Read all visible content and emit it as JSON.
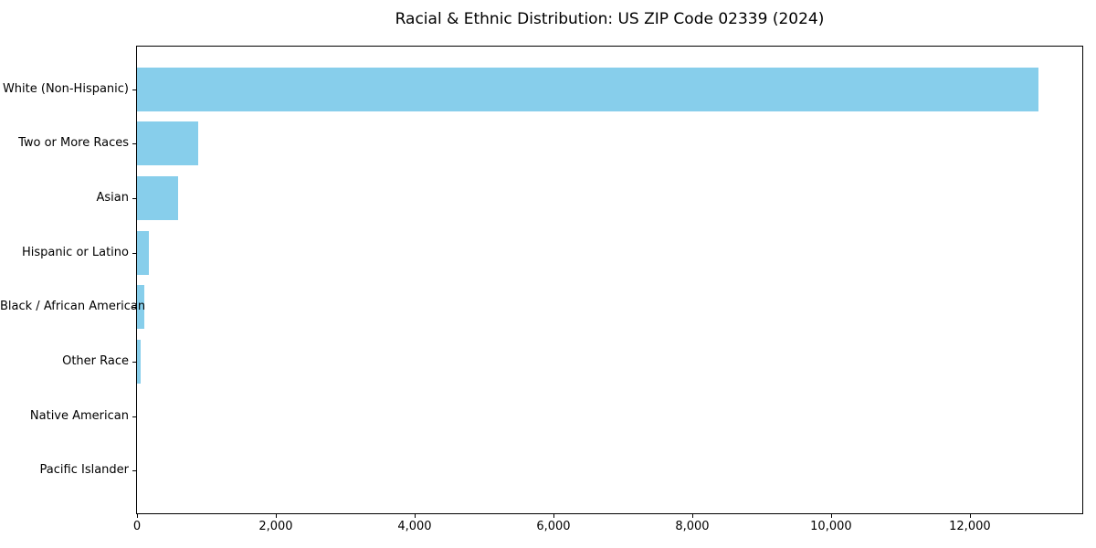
{
  "chart_data": {
    "type": "bar",
    "orientation": "horizontal",
    "title": "Racial & Ethnic Distribution: US ZIP Code 02339 (2024)",
    "categories": [
      "White (Non-Hispanic)",
      "Two or More Races",
      "Asian",
      "Hispanic or Latino",
      "Black / African American",
      "Other Race",
      "Native American",
      "Pacific Islander"
    ],
    "values": [
      12990,
      880,
      590,
      175,
      100,
      50,
      0,
      0
    ],
    "bar_color": "#87CEEB",
    "frame_color": "#000000",
    "text_color": "#000000",
    "xlabel": "",
    "ylabel": "",
    "xlim": [
      0,
      13620
    ],
    "x_ticks": [
      0,
      2000,
      4000,
      6000,
      8000,
      10000,
      12000
    ],
    "x_tick_labels": [
      "0",
      "2,000",
      "4,000",
      "6,000",
      "8,000",
      "10,000",
      "12,000"
    ],
    "grid": false,
    "legend": "none"
  }
}
